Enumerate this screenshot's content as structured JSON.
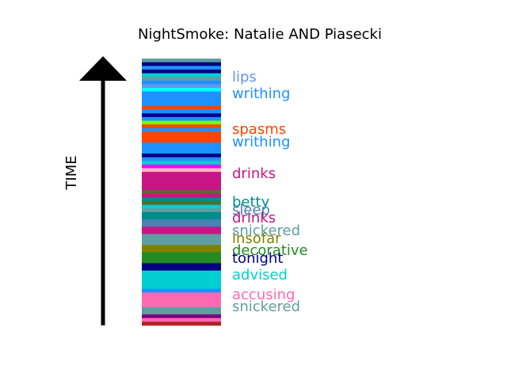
{
  "chart_data": {
    "type": "bar",
    "title": "NightSmoke: Natalie AND Piasecki",
    "ylabel": "TIME",
    "xlabel": "",
    "grid": false,
    "legend": "none",
    "stripes": [
      {
        "color": "#5f9ea0"
      },
      {
        "color": "#000080"
      },
      {
        "color": "#1e90ff"
      },
      {
        "color": "#000080"
      },
      {
        "color": "#00ced1"
      },
      {
        "color": "#5f9ea0"
      },
      {
        "color": "#1e90ff"
      },
      {
        "color": "#6495ed"
      },
      {
        "color": "#00ffff"
      },
      {
        "color": "#1e90ff"
      },
      {
        "color": "#1e90ff"
      },
      {
        "color": "#1e90ff"
      },
      {
        "color": "#1e90ff"
      },
      {
        "color": "#ff4500"
      },
      {
        "color": "#1e90ff"
      },
      {
        "color": "#00008b"
      },
      {
        "color": "#1e90ff"
      },
      {
        "color": "#7cfc00"
      },
      {
        "color": "#ff4500"
      },
      {
        "color": "#1e90ff"
      },
      {
        "color": "#ff4500"
      },
      {
        "color": "#ff4500"
      },
      {
        "color": "#ff4500"
      },
      {
        "color": "#1e90ff"
      },
      {
        "color": "#1e90ff"
      },
      {
        "color": "#1e90ff"
      },
      {
        "color": "#000080"
      },
      {
        "color": "#1e90ff"
      },
      {
        "color": "#00ced1"
      },
      {
        "color": "#ff00ff"
      },
      {
        "color": "#ffb6c1"
      },
      {
        "color": "#c71585"
      },
      {
        "color": "#c71585"
      },
      {
        "color": "#c71585"
      },
      {
        "color": "#c71585"
      },
      {
        "color": "#c71585"
      },
      {
        "color": "#556b2f"
      },
      {
        "color": "#c71585"
      },
      {
        "color": "#008b8b"
      },
      {
        "color": "#556b2f"
      },
      {
        "color": "#00ced1"
      },
      {
        "color": "#5f9ea0"
      },
      {
        "color": "#008b8b"
      },
      {
        "color": "#008b8b"
      },
      {
        "color": "#4682b4"
      },
      {
        "color": "#4682b4"
      },
      {
        "color": "#c71585"
      },
      {
        "color": "#c71585"
      },
      {
        "color": "#5f9ea0"
      },
      {
        "color": "#5f9ea0"
      },
      {
        "color": "#5f9ea0"
      },
      {
        "color": "#808000"
      },
      {
        "color": "#808000"
      },
      {
        "color": "#228b22"
      },
      {
        "color": "#228b22"
      },
      {
        "color": "#228b22"
      },
      {
        "color": "#000080"
      },
      {
        "color": "#000080"
      },
      {
        "color": "#00ced1"
      },
      {
        "color": "#00ced1"
      },
      {
        "color": "#00ced1"
      },
      {
        "color": "#00ced1"
      },
      {
        "color": "#00ced1"
      },
      {
        "color": "#1e90ff"
      },
      {
        "color": "#ff69b4"
      },
      {
        "color": "#ff69b4"
      },
      {
        "color": "#ff69b4"
      },
      {
        "color": "#ff69b4"
      },
      {
        "color": "#5f9ea0"
      },
      {
        "color": "#5f9ea0"
      },
      {
        "color": "#800080"
      },
      {
        "color": "#ff69b4"
      },
      {
        "color": "#b22222"
      }
    ],
    "annotations": [
      {
        "text": "lips",
        "color": "#6495ed"
      },
      {
        "text": "writhing",
        "color": "#1e90ff"
      },
      {
        "text": "spasms",
        "color": "#ff4500"
      },
      {
        "text": "writhing",
        "color": "#1e90ff"
      },
      {
        "text": "drinks",
        "color": "#c71585"
      },
      {
        "text": "betty",
        "color": "#008b8b"
      },
      {
        "text": "sleep",
        "color": "#4682b4"
      },
      {
        "text": "drinks",
        "color": "#c71585"
      },
      {
        "text": "snickered",
        "color": "#5f9ea0"
      },
      {
        "text": "insofar",
        "color": "#808000"
      },
      {
        "text": "decorative",
        "color": "#228b22"
      },
      {
        "text": "tonight",
        "color": "#000080"
      },
      {
        "text": "advised",
        "color": "#00ced1"
      },
      {
        "text": "accusing",
        "color": "#ff69b4"
      },
      {
        "text": "snickered",
        "color": "#5f9ea0"
      }
    ]
  }
}
